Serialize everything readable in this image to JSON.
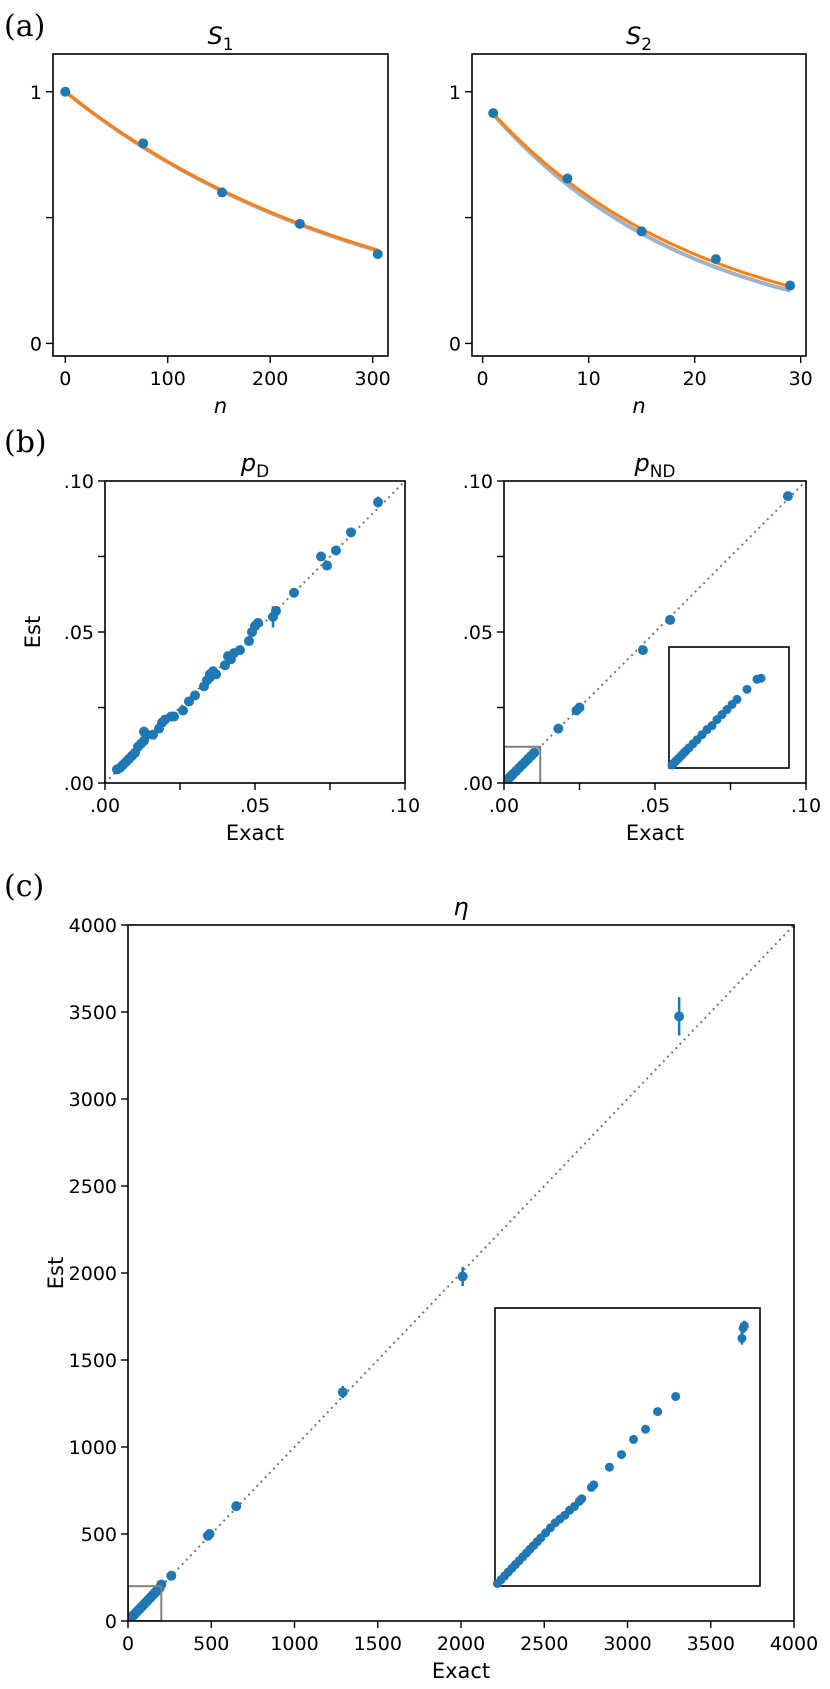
{
  "colors": {
    "blue": "#1f77b4",
    "orange": "#ff7f0e",
    "gray_curve": "#9fb3c8",
    "diag": "#777777",
    "inset": "#808080"
  },
  "chart_data": [
    {
      "panel_label": "(a)",
      "type": "line",
      "title": "S",
      "title_sub": "1",
      "xlabel": "n",
      "ylabel": "",
      "xlim": [
        -12,
        315
      ],
      "ylim": [
        -0.05,
        1.15
      ],
      "xticks": [
        0,
        100,
        200,
        300
      ],
      "xtick_labels": [
        "0",
        "100",
        "200",
        "300"
      ],
      "yticks": [
        0,
        1
      ],
      "ytick_labels": [
        "0",
        "1"
      ],
      "ytick_minor": [
        0.5
      ],
      "series": [
        {
          "name": "points",
          "kind": "scatter",
          "x": [
            0,
            76,
            153,
            229,
            305
          ],
          "y": [
            1.0,
            0.795,
            0.6,
            0.475,
            0.355
          ]
        },
        {
          "name": "fit",
          "kind": "curve",
          "x0": 0,
          "x1": 305,
          "a": 1.0,
          "b": 0.003277
        },
        {
          "name": "exact",
          "kind": "curve",
          "x0": 0,
          "x1": 305,
          "a": 1.0,
          "b": 0.00325
        }
      ]
    },
    {
      "panel_label": "",
      "type": "line",
      "title": "S",
      "title_sub": "2",
      "xlabel": "n",
      "ylabel": "",
      "xlim": [
        -1,
        30.5
      ],
      "ylim": [
        -0.05,
        1.15
      ],
      "xticks": [
        0,
        10,
        20,
        30
      ],
      "xtick_labels": [
        "0",
        "10",
        "20",
        "30"
      ],
      "yticks": [
        0,
        1
      ],
      "ytick_labels": [
        "0",
        "1"
      ],
      "ytick_minor": [
        0.5
      ],
      "series": [
        {
          "name": "points",
          "kind": "scatter",
          "x": [
            1,
            8,
            15,
            22,
            29
          ],
          "y": [
            0.915,
            0.655,
            0.445,
            0.335,
            0.23
          ]
        },
        {
          "name": "fit",
          "kind": "curve",
          "x0": 1,
          "x1": 29,
          "a": 0.96,
          "b": 0.0525
        },
        {
          "name": "exact",
          "kind": "curve",
          "x0": 1,
          "x1": 29,
          "a": 0.96,
          "b": 0.0498
        }
      ]
    },
    {
      "panel_label": "(b)",
      "type": "scatter",
      "title": "p",
      "title_sub": "D",
      "xlabel": "Exact",
      "ylabel": "Est",
      "xlim": [
        0,
        0.1
      ],
      "ylim": [
        0,
        0.1
      ],
      "xticks": [
        0,
        0.05,
        0.1
      ],
      "xtick_labels": [
        ".00",
        ".05",
        ".10"
      ],
      "yticks": [
        0,
        0.05,
        0.1
      ],
      "ytick_labels": [
        ".00",
        ".05",
        ".10"
      ],
      "ytick_minor": [
        0.025,
        0.075
      ],
      "xtick_minor": [
        0.025,
        0.075
      ],
      "diagonal": true,
      "x": [
        0.004,
        0.005,
        0.006,
        0.007,
        0.008,
        0.009,
        0.01,
        0.011,
        0.012,
        0.013,
        0.013,
        0.014,
        0.016,
        0.018,
        0.019,
        0.02,
        0.022,
        0.023,
        0.026,
        0.028,
        0.03,
        0.033,
        0.034,
        0.035,
        0.035,
        0.036,
        0.037,
        0.04,
        0.041,
        0.042,
        0.043,
        0.045,
        0.048,
        0.049,
        0.05,
        0.051,
        0.056,
        0.057,
        0.063,
        0.072,
        0.074,
        0.077,
        0.082,
        0.091
      ],
      "y": [
        0.0045,
        0.005,
        0.006,
        0.007,
        0.008,
        0.009,
        0.01,
        0.012,
        0.013,
        0.014,
        0.017,
        0.016,
        0.016,
        0.018,
        0.02,
        0.021,
        0.022,
        0.022,
        0.024,
        0.027,
        0.029,
        0.032,
        0.034,
        0.035,
        0.036,
        0.037,
        0.036,
        0.039,
        0.042,
        0.041,
        0.043,
        0.044,
        0.047,
        0.05,
        0.052,
        0.053,
        0.055,
        0.057,
        0.063,
        0.075,
        0.072,
        0.077,
        0.083,
        0.093
      ],
      "yerr": [
        0,
        0,
        0,
        0,
        0,
        0,
        0,
        0,
        0,
        0,
        0,
        0,
        0,
        0,
        0,
        0,
        0,
        0,
        0,
        0,
        0,
        0,
        0,
        0,
        0,
        0,
        0,
        0,
        0,
        0,
        0,
        0,
        0,
        0,
        0,
        0,
        0.0035,
        0.0015,
        0,
        0.0015,
        0.0015,
        0.0015,
        0.0015,
        0.0018
      ]
    },
    {
      "panel_label": "",
      "type": "scatter",
      "title": "p",
      "title_sub": "ND",
      "xlabel": "Exact",
      "ylabel": "",
      "xlim": [
        0,
        0.1
      ],
      "ylim": [
        0,
        0.1
      ],
      "xticks": [
        0,
        0.05,
        0.1
      ],
      "xtick_labels": [
        ".00",
        ".05",
        ".10"
      ],
      "yticks": [
        0,
        0.05,
        0.1
      ],
      "ytick_labels": [
        ".00",
        ".05",
        ".10"
      ],
      "ytick_minor": [
        0.025,
        0.075
      ],
      "xtick_minor": [
        0.025,
        0.075
      ],
      "diagonal": true,
      "x": [
        0.0005,
        0.001,
        0.0015,
        0.002,
        0.0025,
        0.003,
        0.004,
        0.005,
        0.006,
        0.007,
        0.008,
        0.009,
        0.01,
        0.018,
        0.024,
        0.025,
        0.046,
        0.055,
        0.094
      ],
      "y": [
        0.0005,
        0.001,
        0.0015,
        0.002,
        0.0025,
        0.003,
        0.004,
        0.005,
        0.006,
        0.007,
        0.008,
        0.009,
        0.01,
        0.018,
        0.024,
        0.025,
        0.044,
        0.054,
        0.095
      ],
      "yerr": [
        0,
        0,
        0,
        0,
        0,
        0,
        0,
        0,
        0,
        0,
        0,
        0,
        0,
        0,
        0,
        0,
        0,
        0,
        0.0015
      ],
      "zoom_box": {
        "xlim": [
          0,
          0.012
        ],
        "ylim": [
          0,
          0.012
        ]
      },
      "inset": {
        "xlim": [
          0,
          0.012
        ],
        "ylim": [
          0,
          0.012
        ],
        "x": [
          0.0003,
          0.0005,
          0.0007,
          0.0009,
          0.0011,
          0.0013,
          0.0015,
          0.0017,
          0.002,
          0.0024,
          0.0028,
          0.0033,
          0.0038,
          0.0043,
          0.0048,
          0.0053,
          0.0058,
          0.0063,
          0.0068,
          0.0078,
          0.0088,
          0.0092
        ],
        "y": [
          0.0003,
          0.0005,
          0.0007,
          0.0009,
          0.0011,
          0.0013,
          0.0015,
          0.0017,
          0.002,
          0.0024,
          0.0028,
          0.0033,
          0.0038,
          0.0042,
          0.0048,
          0.0053,
          0.0058,
          0.0063,
          0.0068,
          0.0078,
          0.0088,
          0.0089
        ]
      }
    },
    {
      "panel_label": "(c)",
      "type": "scatter",
      "title": "η",
      "title_sub": "",
      "xlabel": "Exact",
      "ylabel": "Est",
      "xlim": [
        0,
        4000
      ],
      "ylim": [
        0,
        4000
      ],
      "xticks": [
        0,
        500,
        1000,
        1500,
        2000,
        2500,
        3000,
        3500,
        4000
      ],
      "xtick_labels": [
        "0",
        "500",
        "1000",
        "1500",
        "2000",
        "2500",
        "3000",
        "3500",
        "4000"
      ],
      "yticks": [
        0,
        500,
        1000,
        1500,
        2000,
        2500,
        3000,
        3500,
        4000
      ],
      "ytick_labels": [
        "0",
        "500",
        "1000",
        "1500",
        "2000",
        "2500",
        "3000",
        "3500",
        "4000"
      ],
      "diagonal": true,
      "x": [
        5,
        10,
        15,
        20,
        25,
        30,
        35,
        40,
        50,
        60,
        70,
        80,
        90,
        100,
        110,
        120,
        130,
        140,
        150,
        160,
        170,
        180,
        190,
        200,
        260,
        480,
        490,
        650,
        1290,
        2010,
        3310
      ],
      "y": [
        5,
        10,
        15,
        20,
        25,
        30,
        35,
        40,
        50,
        60,
        70,
        80,
        90,
        100,
        110,
        120,
        130,
        140,
        150,
        160,
        170,
        180,
        190,
        210,
        260,
        490,
        500,
        660,
        1315,
        1980,
        3475
      ],
      "yerr": [
        0,
        0,
        0,
        0,
        0,
        0,
        0,
        0,
        0,
        0,
        0,
        0,
        0,
        0,
        0,
        0,
        0,
        0,
        0,
        0,
        0,
        0,
        0,
        0,
        0,
        12,
        12,
        10,
        35,
        55,
        110
      ],
      "zoom_box": {
        "xlim": [
          0,
          200
        ],
        "ylim": [
          0,
          200
        ]
      },
      "inset": {
        "xlim": [
          0,
          220
        ],
        "ylim": [
          0,
          220
        ],
        "x": [
          2,
          5,
          8,
          11,
          14,
          17,
          20,
          23,
          26,
          29,
          32,
          35,
          38,
          42,
          46,
          50,
          54,
          58,
          62,
          66,
          70,
          72,
          80,
          82,
          95,
          105,
          115,
          125,
          135,
          150,
          205,
          206,
          207
        ],
        "y": [
          2,
          5,
          8,
          11,
          14,
          17,
          20,
          23,
          26,
          29,
          32,
          35,
          38,
          42,
          46,
          50,
          53,
          56,
          60,
          63,
          67,
          69,
          78,
          80,
          94,
          104,
          116,
          124,
          138,
          150,
          196,
          204,
          206
        ],
        "yerr": [
          0,
          0,
          0,
          0,
          0,
          0,
          0,
          0,
          0,
          0,
          0,
          0,
          0,
          0,
          0,
          0,
          0,
          0,
          0,
          0,
          2,
          2,
          2,
          2,
          0,
          0,
          3,
          0,
          3,
          0,
          5,
          4,
          4
        ]
      }
    }
  ]
}
